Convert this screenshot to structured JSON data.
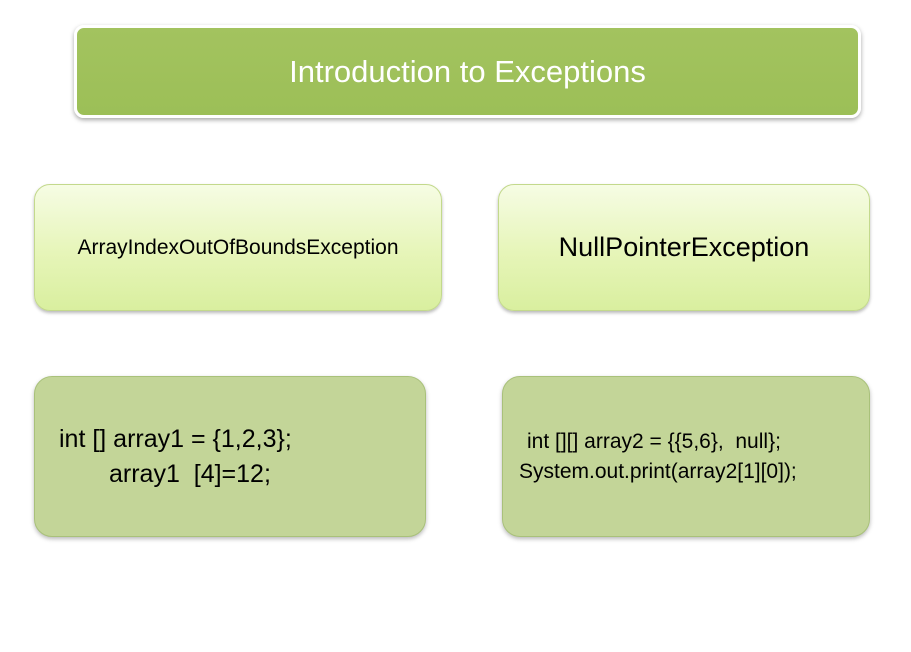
{
  "title": "Introduction to Exceptions",
  "exceptions": [
    {
      "name": "ArrayIndexOutOfBoundsException",
      "code": [
        "int [] array1 = {1,2,3};",
        "array1  [4]=12;"
      ]
    },
    {
      "name": "NullPointerException",
      "code": [
        "int [][] array2 = {{5,6},  null};",
        "System.out.print(array2[1][0]);"
      ]
    }
  ],
  "colors": {
    "title_fill": "#9cbf57",
    "title_text": "#ffffff",
    "label_fill": "#e6f5b8",
    "code_fill": "#c3d598"
  }
}
